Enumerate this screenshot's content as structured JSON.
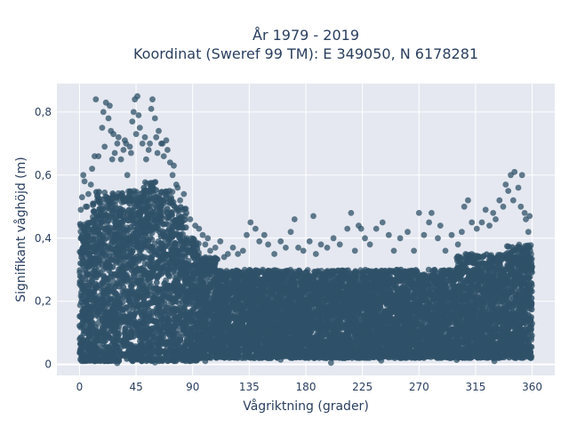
{
  "chart_data": {
    "type": "scatter",
    "title_line1": "År 1979 - 2019",
    "title_line2": "Koordinat (Sweref 99 TM): E 349050, N 6178281",
    "xlabel": "Vågriktning (grader)",
    "ylabel": "Signifikant våghöjd (m)",
    "xlim": [
      -18,
      378
    ],
    "ylim": [
      -0.035,
      0.89
    ],
    "x_ticks": [
      0,
      45,
      90,
      135,
      180,
      225,
      270,
      315,
      360
    ],
    "x_tick_labels": [
      "0",
      "45",
      "90",
      "135",
      "180",
      "225",
      "270",
      "315",
      "360"
    ],
    "y_ticks": [
      0,
      0.2,
      0.4,
      0.6,
      0.8
    ],
    "y_tick_labels": [
      "0",
      "0,2",
      "0,4",
      "0,6",
      "0,8"
    ],
    "grid": true,
    "marker_color": "#2f5168",
    "plot_background": "#e5e8f0",
    "bands": [
      {
        "x": [
          0,
          10
        ],
        "y": [
          0.01,
          0.45
        ]
      },
      {
        "x": [
          10,
          30
        ],
        "y": [
          0.01,
          0.55
        ]
      },
      {
        "x": [
          30,
          50
        ],
        "y": [
          0.01,
          0.55
        ]
      },
      {
        "x": [
          50,
          62
        ],
        "y": [
          0.01,
          0.58
        ]
      },
      {
        "x": [
          62,
          75
        ],
        "y": [
          0.01,
          0.55
        ]
      },
      {
        "x": [
          75,
          85
        ],
        "y": [
          0.01,
          0.5
        ]
      },
      {
        "x": [
          85,
          95
        ],
        "y": [
          0.01,
          0.4
        ]
      },
      {
        "x": [
          95,
          110
        ],
        "y": [
          0.02,
          0.34
        ]
      },
      {
        "x": [
          110,
          230
        ],
        "y": [
          0.02,
          0.3
        ]
      },
      {
        "x": [
          230,
          300
        ],
        "y": [
          0.02,
          0.3
        ]
      },
      {
        "x": [
          300,
          340
        ],
        "y": [
          0.02,
          0.35
        ]
      },
      {
        "x": [
          340,
          360
        ],
        "y": [
          0.02,
          0.38
        ]
      }
    ],
    "outliers": [
      [
        12,
        0.66
      ],
      [
        13,
        0.84
      ],
      [
        18,
        0.75
      ],
      [
        19,
        0.8
      ],
      [
        21,
        0.83
      ],
      [
        23,
        0.78
      ],
      [
        24,
        0.82
      ],
      [
        25,
        0.74
      ],
      [
        27,
        0.73
      ],
      [
        28,
        0.67
      ],
      [
        30,
        0.7
      ],
      [
        31,
        0.72
      ],
      [
        33,
        0.65
      ],
      [
        35,
        0.68
      ],
      [
        37,
        0.7
      ],
      [
        38,
        0.6
      ],
      [
        40,
        0.69
      ],
      [
        42,
        0.77
      ],
      [
        43,
        0.8
      ],
      [
        44,
        0.84
      ],
      [
        45,
        0.73
      ],
      [
        46,
        0.85
      ],
      [
        47,
        0.79
      ],
      [
        48,
        0.75
      ],
      [
        50,
        0.7
      ],
      [
        52,
        0.72
      ],
      [
        55,
        0.68
      ],
      [
        57,
        0.81
      ],
      [
        58,
        0.84
      ],
      [
        60,
        0.78
      ],
      [
        61,
        0.72
      ],
      [
        63,
        0.74
      ],
      [
        65,
        0.7
      ],
      [
        67,
        0.66
      ],
      [
        69,
        0.71
      ],
      [
        72,
        0.64
      ],
      [
        74,
        0.6
      ],
      [
        75,
        0.63
      ],
      [
        78,
        0.56
      ],
      [
        80,
        0.52
      ],
      [
        82,
        0.49
      ],
      [
        85,
        0.48
      ],
      [
        88,
        0.46
      ],
      [
        92,
        0.44
      ],
      [
        95,
        0.43
      ],
      [
        98,
        0.41
      ],
      [
        100,
        0.38
      ],
      [
        102,
        0.4
      ],
      [
        104,
        0.36
      ],
      [
        108,
        0.37
      ],
      [
        112,
        0.39
      ],
      [
        115,
        0.34
      ],
      [
        118,
        0.35
      ],
      [
        122,
        0.37
      ],
      [
        126,
        0.35
      ],
      [
        130,
        0.36
      ],
      [
        133,
        0.41
      ],
      [
        136,
        0.45
      ],
      [
        140,
        0.43
      ],
      [
        143,
        0.39
      ],
      [
        147,
        0.41
      ],
      [
        150,
        0.38
      ],
      [
        155,
        0.35
      ],
      [
        160,
        0.39
      ],
      [
        164,
        0.37
      ],
      [
        168,
        0.42
      ],
      [
        171,
        0.46
      ],
      [
        174,
        0.37
      ],
      [
        178,
        0.36
      ],
      [
        183,
        0.39
      ],
      [
        186,
        0.47
      ],
      [
        188,
        0.35
      ],
      [
        192,
        0.38
      ],
      [
        197,
        0.37
      ],
      [
        202,
        0.4
      ],
      [
        207,
        0.38
      ],
      [
        213,
        0.43
      ],
      [
        216,
        0.48
      ],
      [
        219,
        0.36
      ],
      [
        222,
        0.44
      ],
      [
        224,
        0.43
      ],
      [
        227,
        0.4
      ],
      [
        231,
        0.38
      ],
      [
        236,
        0.43
      ],
      [
        241,
        0.45
      ],
      [
        246,
        0.41
      ],
      [
        250,
        0.36
      ],
      [
        255,
        0.4
      ],
      [
        261,
        0.42
      ],
      [
        266,
        0.36
      ],
      [
        270,
        0.48
      ],
      [
        274,
        0.41
      ],
      [
        278,
        0.45
      ],
      [
        280,
        0.48
      ],
      [
        285,
        0.4
      ],
      [
        287,
        0.44
      ],
      [
        291,
        0.36
      ],
      [
        296,
        0.41
      ],
      [
        301,
        0.38
      ],
      [
        304,
        0.42
      ],
      [
        306,
        0.5
      ],
      [
        309,
        0.52
      ],
      [
        312,
        0.45
      ],
      [
        316,
        0.43
      ],
      [
        320,
        0.45
      ],
      [
        323,
        0.49
      ],
      [
        326,
        0.44
      ],
      [
        329,
        0.48
      ],
      [
        331,
        0.46
      ],
      [
        334,
        0.52
      ],
      [
        337,
        0.5
      ],
      [
        339,
        0.57
      ],
      [
        341,
        0.55
      ],
      [
        343,
        0.6
      ],
      [
        345,
        0.52
      ],
      [
        346,
        0.61
      ],
      [
        349,
        0.56
      ],
      [
        351,
        0.5
      ],
      [
        352,
        0.6
      ],
      [
        354,
        0.48
      ],
      [
        355,
        0.46
      ],
      [
        357,
        0.42
      ],
      [
        358,
        0.47
      ],
      [
        3,
        0.6
      ],
      [
        4,
        0.58
      ],
      [
        6,
        0.5
      ],
      [
        7,
        0.54
      ],
      [
        9,
        0.57
      ],
      [
        10,
        0.62
      ],
      [
        15,
        0.66
      ],
      [
        20,
        0.69
      ],
      [
        26,
        0.65
      ],
      [
        36,
        0.71
      ],
      [
        41,
        0.67
      ],
      [
        53,
        0.65
      ],
      [
        56,
        0.7
      ],
      [
        62,
        0.67
      ],
      [
        66,
        0.7
      ],
      [
        70,
        0.68
      ],
      [
        77,
        0.57
      ],
      [
        83,
        0.54
      ],
      [
        1,
        0.49
      ],
      [
        2,
        0.53
      ],
      [
        5,
        0.5
      ],
      [
        100,
        0.01
      ],
      [
        160,
        0.015
      ],
      [
        200,
        0.005
      ],
      [
        240,
        0.012
      ],
      [
        300,
        0.014
      ],
      [
        330,
        0.01
      ],
      [
        30,
        0.004
      ],
      [
        60,
        0.006
      ]
    ]
  }
}
